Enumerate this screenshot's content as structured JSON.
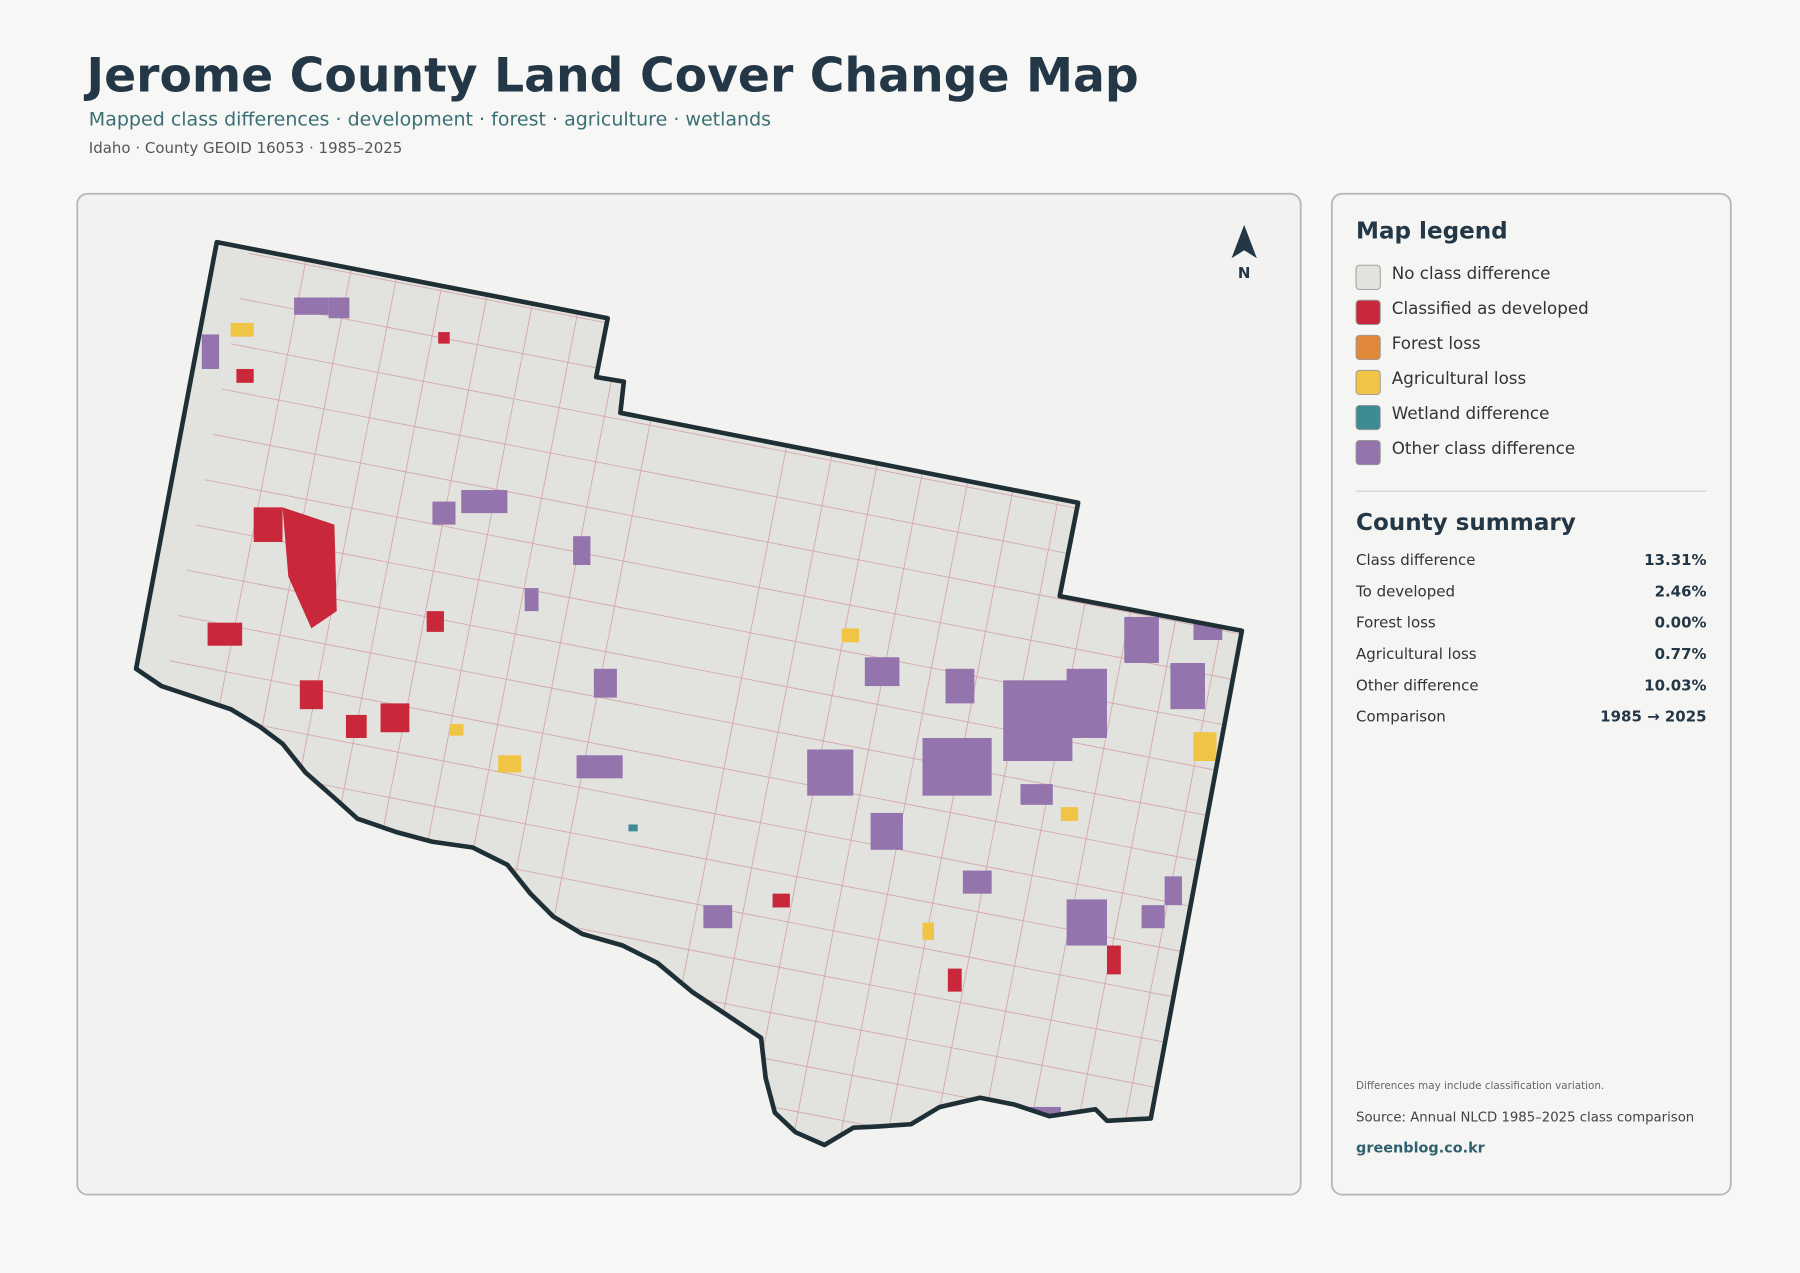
{
  "header": {
    "title": "Jerome County Land Cover Change Map",
    "subtitle": "Mapped class differences · development · forest · agriculture · wetlands",
    "meta": "Idaho · County GEOID 16053 · 1985–2025"
  },
  "map": {
    "north_label": "N"
  },
  "legend": {
    "title": "Map legend",
    "items": [
      {
        "label": "No class difference",
        "color": "#e2e3df"
      },
      {
        "label": "Classified as developed",
        "color": "#c8283a"
      },
      {
        "label": "Forest loss",
        "color": "#e0873a"
      },
      {
        "label": "Agricultural loss",
        "color": "#f0c445"
      },
      {
        "label": "Wetland difference",
        "color": "#3d8b94"
      },
      {
        "label": "Other class difference",
        "color": "#9474ad"
      }
    ]
  },
  "summary": {
    "title": "County summary",
    "rows": [
      [
        "Class difference",
        "13.31%"
      ],
      [
        "To developed",
        "2.46%"
      ],
      [
        "Forest loss",
        "0.00%"
      ],
      [
        "Agricultural loss",
        "0.77%"
      ],
      [
        "Other difference",
        "10.03%"
      ],
      [
        "Comparison",
        "1985 → 2025"
      ]
    ]
  },
  "notes": {
    "footnote": "Differences may include classification variation.",
    "source": "Source: Annual NLCD 1985–2025 class comparison",
    "credit": "greenblog.co.kr"
  }
}
